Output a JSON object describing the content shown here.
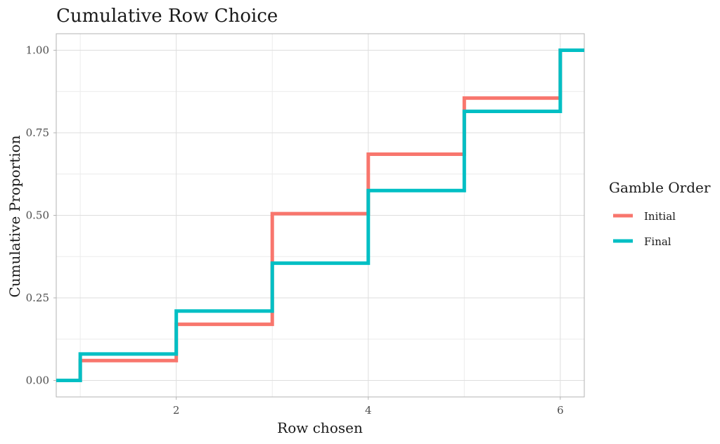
{
  "chart_data": {
    "type": "line",
    "step": true,
    "title": "Cumulative Row Choice",
    "xlabel": "Row chosen",
    "ylabel": "Cumulative Proportion",
    "xlim": [
      0.75,
      6.25
    ],
    "ylim": [
      -0.05,
      1.05
    ],
    "x_ticks": [
      2,
      4,
      6
    ],
    "x_tick_labels": [
      "2",
      "4",
      "6"
    ],
    "y_ticks": [
      0,
      0.25,
      0.5,
      0.75,
      1.0
    ],
    "y_tick_labels": [
      "0.00",
      "0.25",
      "0.50",
      "0.75",
      "1.00"
    ],
    "grid": true,
    "legend": {
      "title": "Gamble Order",
      "position": "right"
    },
    "series": [
      {
        "name": "Initial",
        "color": "#F8766D",
        "x": [
          1,
          2,
          3,
          4,
          5,
          6
        ],
        "values": [
          0.06,
          0.17,
          0.505,
          0.685,
          0.855,
          1.0
        ]
      },
      {
        "name": "Final",
        "color": "#00BFC4",
        "x": [
          1,
          2,
          3,
          4,
          5,
          6
        ],
        "values": [
          0.08,
          0.21,
          0.355,
          0.575,
          0.815,
          1.0
        ]
      }
    ]
  }
}
